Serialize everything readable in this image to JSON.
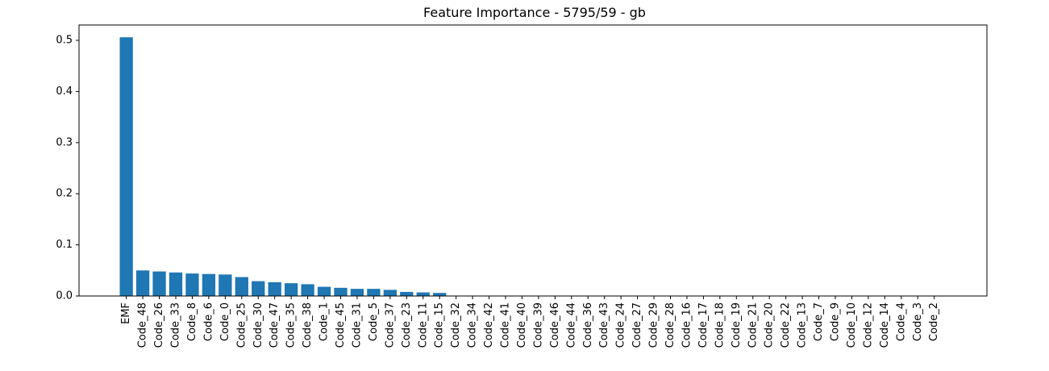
{
  "chart_data": {
    "type": "bar",
    "title": "Feature Importance - 5795/59 - gb",
    "xlabel": "",
    "ylabel": "",
    "ylim": [
      0,
      0.53
    ],
    "yticks": [
      0.0,
      0.1,
      0.2,
      0.3,
      0.4,
      0.5
    ],
    "ytick_labels": [
      "0.0",
      "0.1",
      "0.2",
      "0.3",
      "0.4",
      "0.5"
    ],
    "grid": false,
    "bar_color": "#1f77b4",
    "categories": [
      "EMF",
      "Code_48",
      "Code_26",
      "Code_33",
      "Code_8",
      "Code_6",
      "Code_0",
      "Code_25",
      "Code_30",
      "Code_47",
      "Code_35",
      "Code_38",
      "Code_1",
      "Code_45",
      "Code_31",
      "Code_5",
      "Code_37",
      "Code_23",
      "Code_11",
      "Code_15",
      "Code_32",
      "Code_34",
      "Code_42",
      "Code_41",
      "Code_40",
      "Code_39",
      "Code_46",
      "Code_44",
      "Code_36",
      "Code_43",
      "Code_24",
      "Code_27",
      "Code_29",
      "Code_28",
      "Code_16",
      "Code_17",
      "Code_18",
      "Code_19",
      "Code_21",
      "Code_20",
      "Code_22",
      "Code_13",
      "Code_7",
      "Code_9",
      "Code_10",
      "Code_12",
      "Code_14",
      "Code_4",
      "Code_3",
      "Code_2"
    ],
    "values": [
      0.506,
      0.05,
      0.048,
      0.046,
      0.044,
      0.043,
      0.042,
      0.037,
      0.029,
      0.027,
      0.025,
      0.023,
      0.018,
      0.016,
      0.014,
      0.014,
      0.012,
      0.008,
      0.007,
      0.006,
      0,
      0,
      0,
      0,
      0,
      0,
      0,
      0,
      0,
      0,
      0,
      0,
      0,
      0,
      0,
      0,
      0,
      0,
      0,
      0,
      0,
      0,
      0,
      0,
      0,
      0,
      0,
      0,
      0,
      0
    ]
  }
}
